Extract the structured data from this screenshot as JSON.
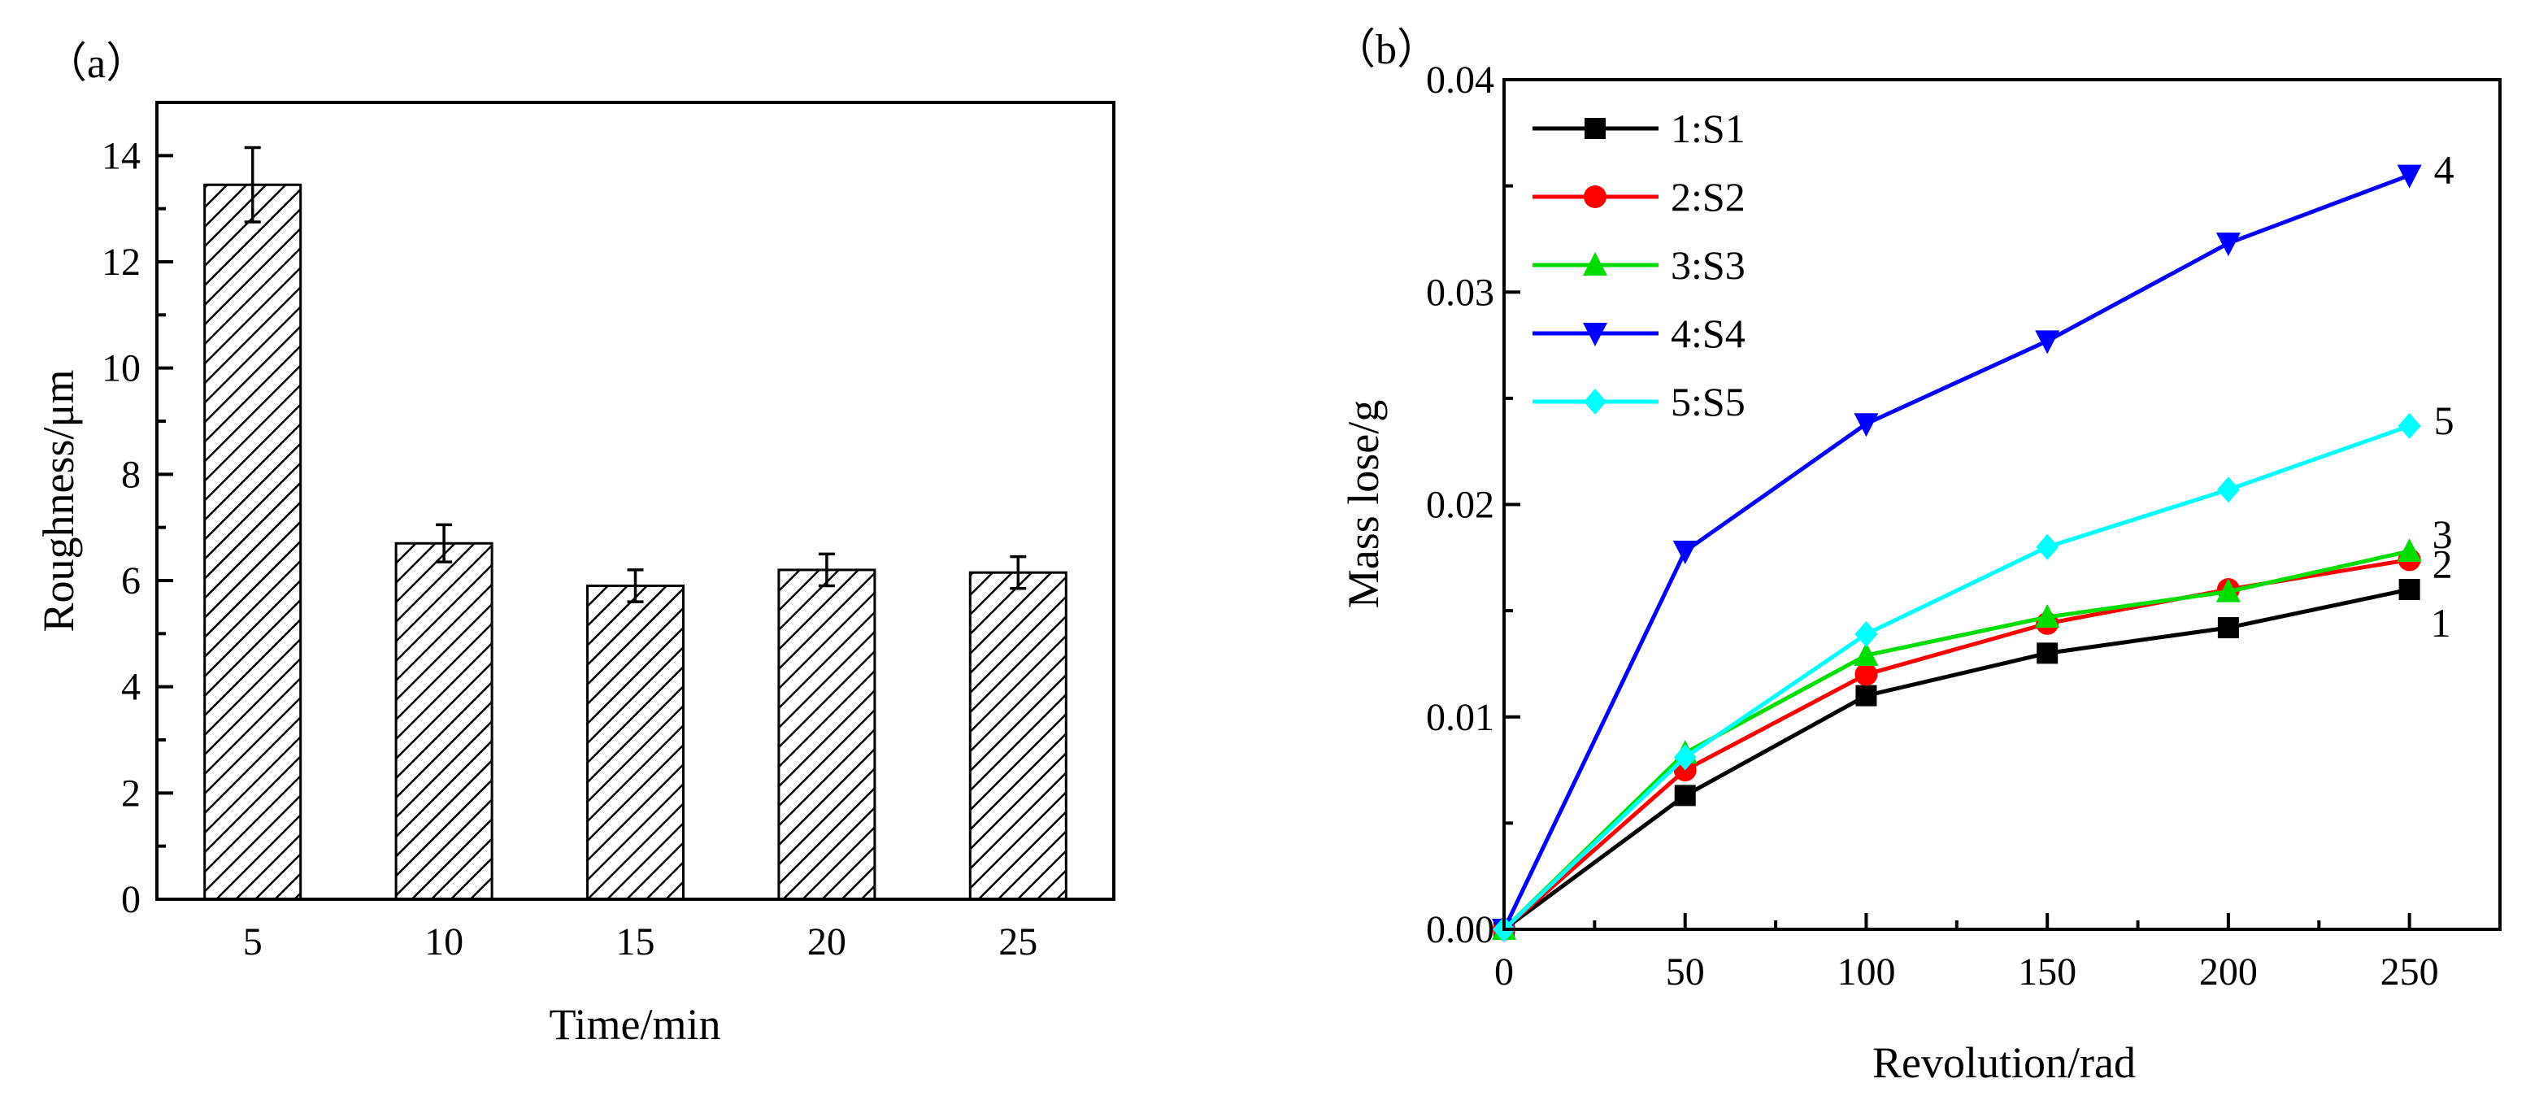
{
  "chart_data": [
    {
      "type": "bar",
      "panel_label": "（a）",
      "title": "",
      "xlabel": "Time/min",
      "ylabel": "Roughness/μm",
      "categories": [
        "5",
        "10",
        "15",
        "20",
        "25"
      ],
      "values": [
        13.45,
        6.7,
        5.9,
        6.2,
        6.15
      ],
      "errors": [
        0.7,
        0.35,
        0.3,
        0.3,
        0.3
      ],
      "ylim": [
        0,
        15
      ],
      "yticks": [
        "0",
        "2",
        "4",
        "6",
        "8",
        "10",
        "12",
        "14"
      ],
      "bar_fill": "diagonal-hatch",
      "colors": {
        "bar_edge": "#000000",
        "hatch": "#000000"
      }
    },
    {
      "type": "line",
      "panel_label": "（b）",
      "title": "",
      "xlabel": "Revolution/rad",
      "ylabel": "Mass lose/g",
      "xlim": [
        0,
        275
      ],
      "ylim": [
        0,
        0.04
      ],
      "xticks": [
        "0",
        "50",
        "100",
        "150",
        "200",
        "250"
      ],
      "yticks": [
        "0.00",
        "0.01",
        "0.02",
        "0.03",
        "0.04"
      ],
      "x": [
        0,
        50,
        100,
        150,
        200,
        250
      ],
      "legend_position": "top-left",
      "series": [
        {
          "name": "1:S1",
          "end_label": "1",
          "marker": "square",
          "color": "#000000",
          "values": [
            0,
            0.0063,
            0.011,
            0.013,
            0.0142,
            0.016
          ]
        },
        {
          "name": "2:S2",
          "end_label": "2",
          "marker": "circle",
          "color": "#ff0000",
          "values": [
            0,
            0.0075,
            0.012,
            0.0144,
            0.016,
            0.0174
          ]
        },
        {
          "name": "3:S3",
          "end_label": "3",
          "marker": "triangle-up",
          "color": "#00dd00",
          "values": [
            0,
            0.0083,
            0.0129,
            0.0147,
            0.0159,
            0.0178
          ]
        },
        {
          "name": "4:S4",
          "end_label": "4",
          "marker": "triangle-down",
          "color": "#0000ff",
          "values": [
            0,
            0.0178,
            0.0238,
            0.0277,
            0.0323,
            0.0355
          ]
        },
        {
          "name": "5:S5",
          "end_label": "5",
          "marker": "diamond",
          "color": "#00ffff",
          "values": [
            0,
            0.0081,
            0.0139,
            0.018,
            0.0207,
            0.0237
          ]
        }
      ]
    }
  ]
}
